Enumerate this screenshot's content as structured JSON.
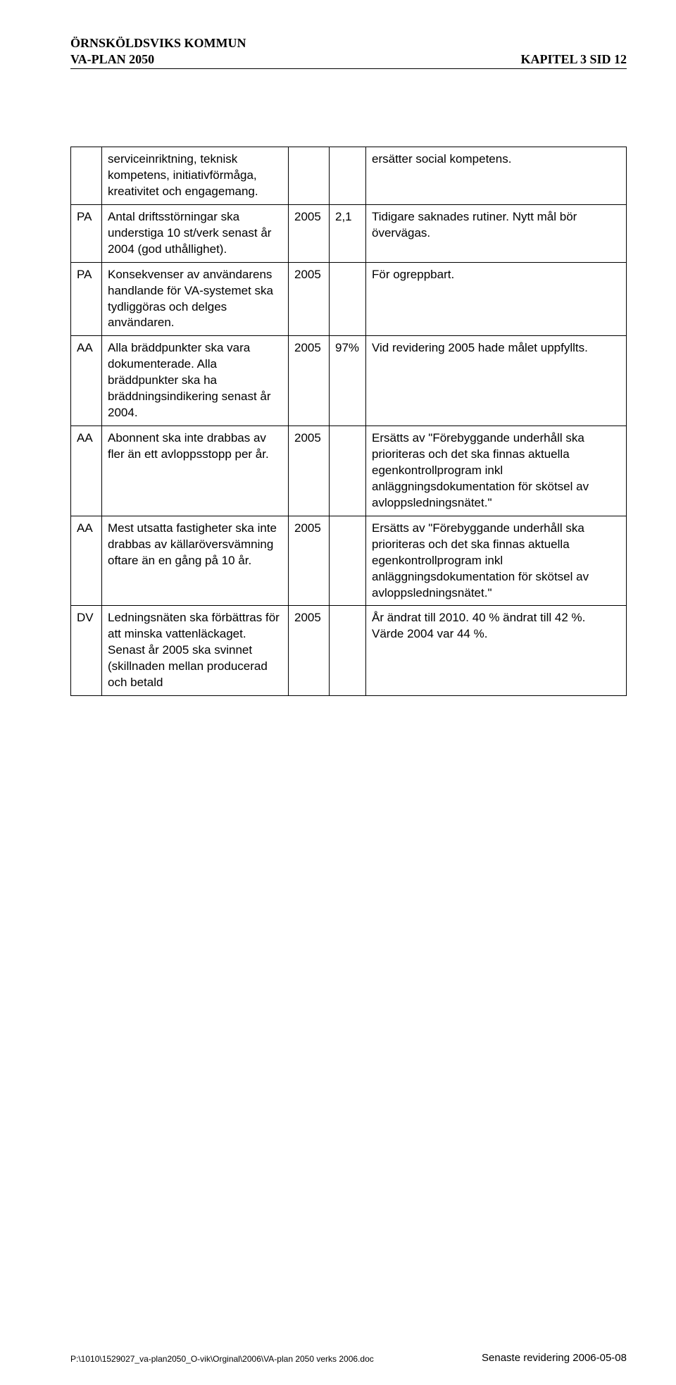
{
  "header": {
    "org": "ÖRNSKÖLDSVIKS KOMMUN",
    "plan": "VA-PLAN 2050",
    "chapter": "KAPITEL 3   SID 12"
  },
  "table": {
    "rows": [
      {
        "c0": "",
        "c1": "serviceinriktning, teknisk kompetens, initiativförmåga, kreativitet och engagemang.",
        "c2": "",
        "c3": "",
        "c4": "ersätter social kompetens."
      },
      {
        "c0": "PA",
        "c1": "Antal driftsstörningar ska understiga 10 st/verk senast år 2004 (god uthållighet).",
        "c2": "2005",
        "c3": "2,1",
        "c4": "Tidigare saknades rutiner. Nytt mål bör övervägas."
      },
      {
        "c0": "PA",
        "c1": "Konsekvenser av användarens handlande för VA-systemet ska tydliggöras och delges användaren.",
        "c2": "2005",
        "c3": "",
        "c4": "För ogreppbart."
      },
      {
        "c0": "AA",
        "c1": "Alla bräddpunkter ska vara dokumenterade. Alla bräddpunkter ska ha bräddningsindikering senast år 2004.",
        "c2": "2005",
        "c3": "97%",
        "c4": "Vid revidering 2005 hade målet uppfyllts."
      },
      {
        "c0": "AA",
        "c1": "Abonnent ska inte drabbas av fler än ett avloppsstopp per år.",
        "c2": "2005",
        "c3": "",
        "c4": "Ersätts av \"Förebyggande underhåll ska prioriteras och det ska finnas aktuella egenkontrollprogram inkl anläggningsdokumentation för skötsel av avloppsledningsnätet.\""
      },
      {
        "c0": "AA",
        "c1": "Mest utsatta fastigheter ska inte drabbas av källaröversvämning oftare än en gång på 10 år.",
        "c2": "2005",
        "c3": "",
        "c4": "Ersätts av \"Förebyggande underhåll ska prioriteras och det ska finnas aktuella egenkontrollprogram inkl anläggningsdokumentation för skötsel av avloppsledningsnätet.\""
      },
      {
        "c0": "DV",
        "c1": "Ledningsnäten ska förbättras för att minska vattenläckaget. Senast år 2005 ska svinnet (skillnaden mellan producerad och betald",
        "c2": "2005",
        "c3": "",
        "c4": "År ändrat till 2010. 40 % ändrat till 42 %. Värde 2004 var 44 %."
      }
    ]
  },
  "footer": {
    "path": "P:\\1010\\1529027_va-plan2050_O-vik\\Orginal\\2006\\VA-plan 2050 verks 2006.doc",
    "revision": "Senaste revidering 2006-05-08"
  },
  "colors": {
    "text": "#000000",
    "background": "#ffffff",
    "border": "#000000"
  },
  "fonts": {
    "header": "Times New Roman",
    "body": "Arial",
    "body_size_pt": 13,
    "header_size_pt": 14
  }
}
